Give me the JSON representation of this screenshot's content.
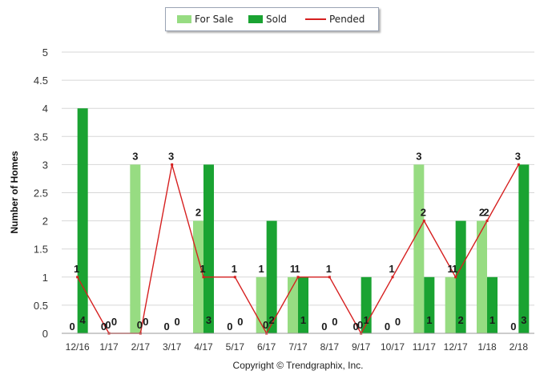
{
  "chart_data": {
    "type": "bar",
    "title": "",
    "xlabel": "",
    "ylabel": "Number of Homes",
    "ylim": [
      0,
      5
    ],
    "yticks": [
      "0",
      "0.5",
      "1",
      "1.5",
      "2",
      "2.5",
      "3",
      "3.5",
      "4",
      "4.5",
      "5"
    ],
    "categories": [
      "12/16",
      "1/17",
      "2/17",
      "3/17",
      "4/17",
      "5/17",
      "6/17",
      "7/17",
      "8/17",
      "9/17",
      "10/17",
      "11/17",
      "12/17",
      "1/18",
      "2/18"
    ],
    "series": [
      {
        "name": "For Sale",
        "kind": "bar",
        "color": "#97dc82",
        "values": [
          0,
          0,
          3,
          0,
          2,
          0,
          1,
          1,
          0,
          0,
          0,
          3,
          1,
          2,
          0
        ]
      },
      {
        "name": "Sold",
        "kind": "bar",
        "color": "#1aa332",
        "values": [
          4,
          0,
          0,
          0,
          3,
          0,
          2,
          1,
          0,
          1,
          0,
          1,
          2,
          1,
          3
        ]
      },
      {
        "name": "Pended",
        "kind": "line",
        "color": "#d62020",
        "values": [
          1,
          0,
          0,
          3,
          1,
          1,
          0,
          1,
          1,
          0,
          1,
          2,
          1,
          2,
          3
        ]
      }
    ],
    "grid": true,
    "legend": "top-center"
  },
  "copyright": "Copyright © Trendgraphix, Inc."
}
